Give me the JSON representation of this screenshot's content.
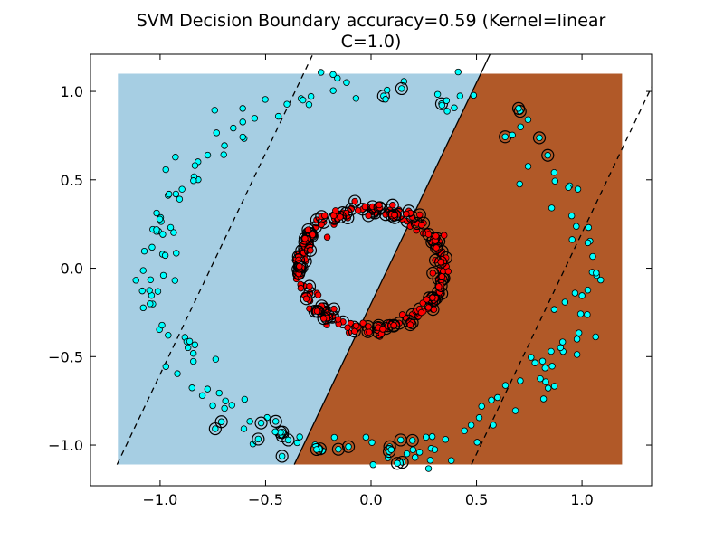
{
  "chart_data": {
    "type": "scatter",
    "title": "SVM Decision Boundary accuracy=0.59 (Kernel=linear",
    "subtitle": "C=1.0)",
    "xlabel": "",
    "ylabel": "",
    "xlim": [
      -1.33,
      1.33
    ],
    "ylim": [
      -1.23,
      1.21
    ],
    "xticks": [
      -1.0,
      -0.5,
      0.0,
      0.5,
      1.0
    ],
    "yticks": [
      -1.0,
      -0.5,
      0.0,
      0.5,
      1.0
    ],
    "xtick_labels": [
      "−1.0",
      "−0.5",
      "0.0",
      "0.5",
      "1.0"
    ],
    "ytick_labels": [
      "−1.0",
      "−0.5",
      "0.0",
      "0.5",
      "1.0"
    ],
    "grid": false,
    "legend": "none",
    "mesh_extent": {
      "x": [
        -1.2,
        1.19
      ],
      "y": [
        -1.11,
        1.1
      ]
    },
    "decision_boundary": {
      "slope": 2.5,
      "intercept": -0.2
    },
    "margins": [
      {
        "slope": 2.5,
        "intercept": 1.9
      },
      {
        "slope": 2.5,
        "intercept": -2.3
      }
    ],
    "region_colors": {
      "class0": "#a6cee3",
      "class1": "#b15928"
    },
    "point_colors": {
      "outer": "#00ffff",
      "inner": "#ff0000"
    },
    "series": [
      {
        "class": "outer",
        "shape": "circle",
        "radius": 1.03,
        "count": 210,
        "seed": 11
      },
      {
        "class": "inner",
        "shape": "circle",
        "radius": 0.34,
        "count": 240,
        "seed": 23
      }
    ],
    "support_vector_fraction": 0.33
  }
}
